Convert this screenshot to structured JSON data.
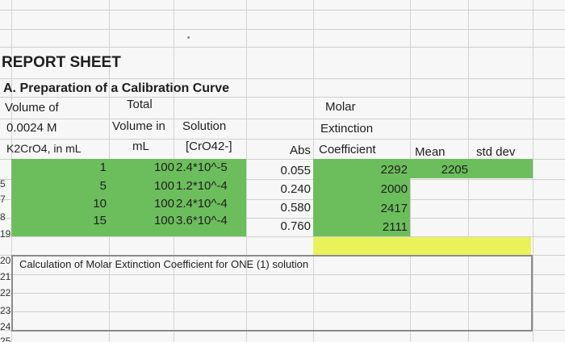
{
  "report_title": "REPORT SHEET",
  "section_title": "A. Preparation of a Calibration Curve",
  "headers": {
    "volume_line1": "Volume of",
    "volume_line2": "0.0024 M",
    "volume_line3": "K2CrO4, in mL",
    "total_line1": "Total",
    "total_line2": "Volume in",
    "total_line3": "mL",
    "solution_line1": "Solution",
    "solution_line2": "[CrO42-]",
    "abs": "Abs",
    "molar_line1": "Molar",
    "molar_line2": "Extinction",
    "molar_line3": "Coefficient",
    "mean": "Mean",
    "std_dev": "std dev"
  },
  "rows": [
    {
      "volume": "1",
      "total": "100",
      "conc": "2.4*10^-5",
      "abs": "0.055",
      "coeff": "2292",
      "mean": "2205"
    },
    {
      "volume": "5",
      "total": "100",
      "conc": "1.2*10^-4",
      "abs": "0.240",
      "coeff": "2000",
      "mean": ""
    },
    {
      "volume": "10",
      "total": "100",
      "conc": "2.4*10^-4",
      "abs": "0.580",
      "coeff": "2417",
      "mean": ""
    },
    {
      "volume": "15",
      "total": "100",
      "conc": "3.6*10^-4",
      "abs": "0.760",
      "coeff": "2111",
      "mean": ""
    }
  ],
  "row_numbers": [
    "5",
    "7",
    "8",
    "19",
    "20",
    "21",
    "22",
    "23",
    "24",
    "25"
  ],
  "calc_label": "Calculation of Molar Extinction Coefficient for ONE (1) solution",
  "colors": {
    "green": "#6cbe5c",
    "yellow": "#eaf25a",
    "selection_border": "#8a8a8a",
    "sheet_bg": "#f7f7f7",
    "gridline": "#cfcfcf"
  }
}
